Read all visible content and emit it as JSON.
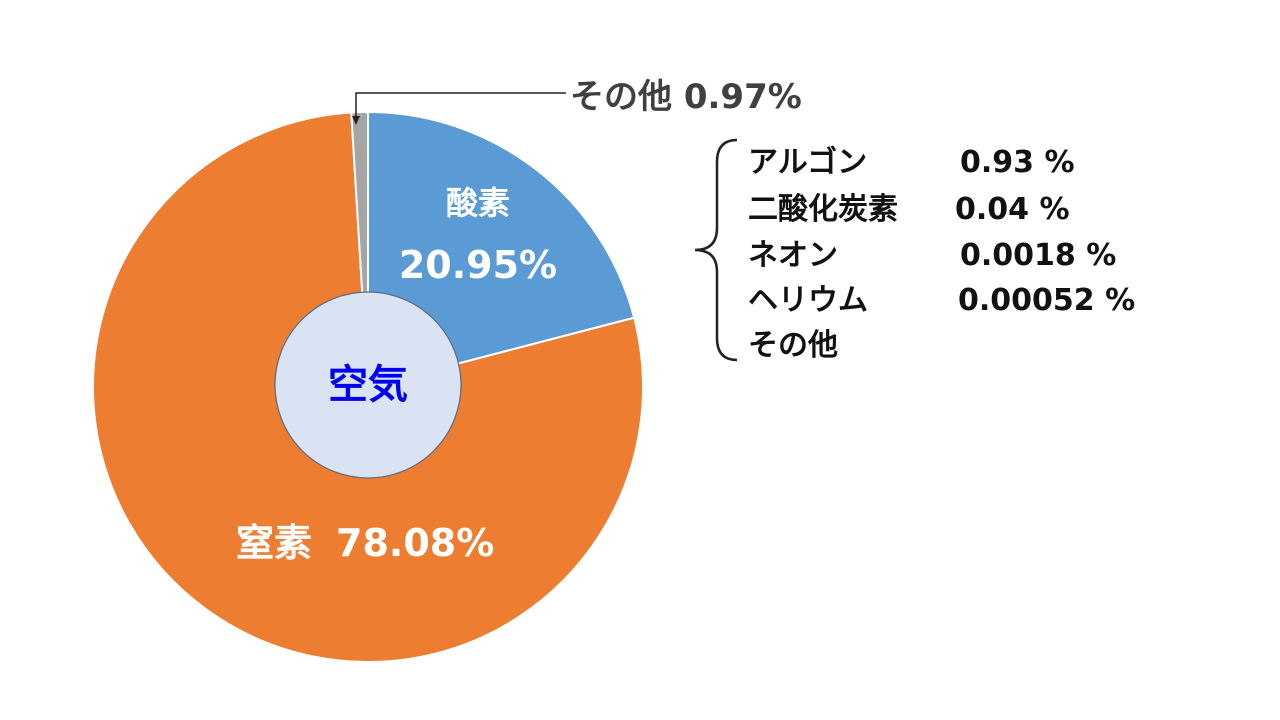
{
  "chart_data": {
    "type": "pie",
    "center_label": "空気",
    "center_color": "#0000ee",
    "center_fill": "#dae3f3",
    "slices": [
      {
        "name": "酸素",
        "value": 20.95,
        "value_label": "20.95%",
        "color": "#5b9bd5"
      },
      {
        "name": "窒素",
        "value": 78.08,
        "value_label": "78.08%",
        "color": "#ed7d31"
      },
      {
        "name": "その他",
        "value": 0.97,
        "value_label": "0.97%",
        "color": "#a5a5a5"
      }
    ],
    "other_callout": "その他 0.97%",
    "other_breakdown": [
      {
        "name": "アルゴン",
        "value": "0.93 %"
      },
      {
        "name": "二酸化炭素",
        "value": "0.04 %"
      },
      {
        "name": "ネオン",
        "value": "0.0018 %"
      },
      {
        "name": "ヘリウム",
        "value": "0.00052 %"
      },
      {
        "name": "その他",
        "value": ""
      }
    ]
  }
}
